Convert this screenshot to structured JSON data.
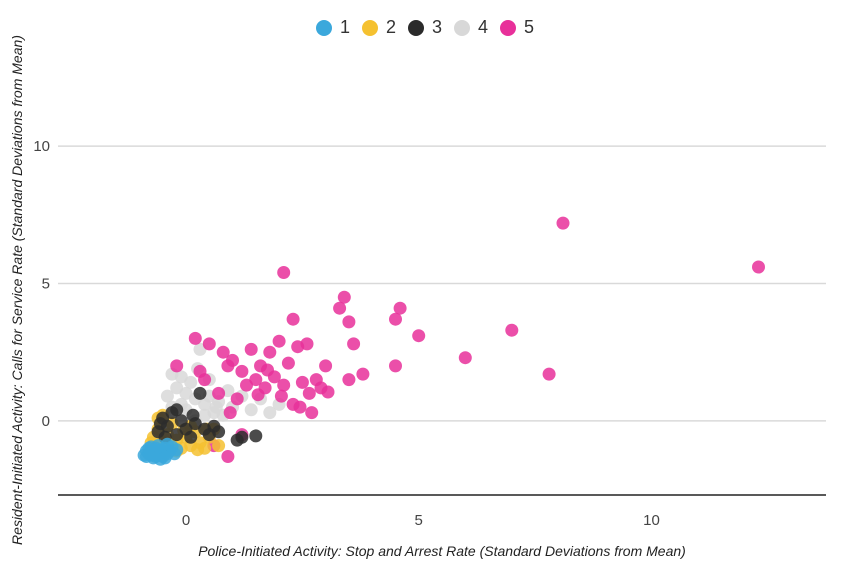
{
  "chart_data": {
    "type": "scatter",
    "title": "",
    "xlabel": "Police-Initiated Activity: Stop and Arrest Rate (Standard Deviations from Mean)",
    "ylabel": "Resident-Initiated Activity: Calls for Service Rate (Standard Deviations from Mean)",
    "xlim": [
      -2.75,
      13.75
    ],
    "ylim": [
      -2.7,
      13.5
    ],
    "xticks": [
      "0",
      "5",
      "10"
    ],
    "yticks": [
      "0",
      "5",
      "10"
    ],
    "grid": "horizontal",
    "legend_position": "top-center",
    "series": [
      {
        "name": "1",
        "color": "#3ba8dc",
        "points": [
          [
            -0.85,
            -1.3
          ],
          [
            -0.8,
            -1.2
          ],
          [
            -0.75,
            -1.25
          ],
          [
            -0.7,
            -1.1
          ],
          [
            -0.65,
            -1.3
          ],
          [
            -0.6,
            -1.2
          ],
          [
            -0.55,
            -1.05
          ],
          [
            -0.5,
            -1.15
          ],
          [
            -0.45,
            -1.0
          ],
          [
            -0.4,
            -1.2
          ],
          [
            -0.85,
            -1.1
          ],
          [
            -0.75,
            -0.95
          ],
          [
            -0.6,
            -0.9
          ],
          [
            -0.5,
            -1.3
          ],
          [
            -0.35,
            -1.1
          ],
          [
            -0.3,
            -0.95
          ],
          [
            -0.2,
            -1.05
          ],
          [
            -0.7,
            -1.35
          ],
          [
            -0.55,
            -1.4
          ],
          [
            -0.9,
            -1.25
          ],
          [
            -0.45,
            -1.35
          ],
          [
            -0.65,
            -1.0
          ],
          [
            -0.25,
            -1.2
          ],
          [
            -0.8,
            -1.0
          ],
          [
            -0.4,
            -0.85
          ]
        ]
      },
      {
        "name": "2",
        "color": "#f5c130",
        "points": [
          [
            -0.7,
            -0.6
          ],
          [
            -0.6,
            -0.3
          ],
          [
            -0.5,
            -0.8
          ],
          [
            -0.4,
            -0.5
          ],
          [
            -0.3,
            -0.9
          ],
          [
            -0.2,
            -0.7
          ],
          [
            -0.1,
            -1.0
          ],
          [
            0.0,
            -0.6
          ],
          [
            0.1,
            -0.9
          ],
          [
            0.2,
            -0.4
          ],
          [
            0.3,
            -0.8
          ],
          [
            0.4,
            -1.0
          ],
          [
            0.5,
            -0.6
          ],
          [
            0.6,
            -0.3
          ],
          [
            0.7,
            -0.9
          ],
          [
            -0.6,
            0.1
          ],
          [
            -0.5,
            0.2
          ],
          [
            -0.3,
            -0.1
          ],
          [
            -0.2,
            -1.1
          ],
          [
            0.1,
            -0.2
          ],
          [
            0.25,
            -1.05
          ],
          [
            -0.75,
            -0.8
          ],
          [
            0.45,
            -0.3
          ],
          [
            -0.05,
            -0.35
          ]
        ]
      },
      {
        "name": "3",
        "color": "#2b2b2b",
        "points": [
          [
            -0.6,
            -0.4
          ],
          [
            -0.5,
            0.1
          ],
          [
            -0.4,
            -0.2
          ],
          [
            -0.3,
            0.3
          ],
          [
            -0.2,
            -0.5
          ],
          [
            -0.1,
            0.0
          ],
          [
            0.0,
            -0.3
          ],
          [
            0.1,
            -0.6
          ],
          [
            0.2,
            -0.1
          ],
          [
            0.3,
            1.0
          ],
          [
            0.4,
            -0.3
          ],
          [
            0.5,
            -0.5
          ],
          [
            0.6,
            -0.2
          ],
          [
            0.7,
            -0.4
          ],
          [
            -0.45,
            -0.6
          ],
          [
            1.2,
            -0.6
          ],
          [
            1.5,
            -0.55
          ],
          [
            -0.2,
            0.4
          ],
          [
            0.15,
            0.2
          ],
          [
            1.1,
            -0.7
          ],
          [
            -0.55,
            -0.1
          ]
        ]
      },
      {
        "name": "4",
        "color": "#d8d8d8",
        "points": [
          [
            -0.3,
            1.7
          ],
          [
            -0.2,
            1.2
          ],
          [
            -0.1,
            1.6
          ],
          [
            0.0,
            1.0
          ],
          [
            0.1,
            1.4
          ],
          [
            0.2,
            0.8
          ],
          [
            0.3,
            2.6
          ],
          [
            0.4,
            0.6
          ],
          [
            0.5,
            0.9
          ],
          [
            0.6,
            0.3
          ],
          [
            0.7,
            0.7
          ],
          [
            0.8,
            0.2
          ],
          [
            0.9,
            1.1
          ],
          [
            1.0,
            0.5
          ],
          [
            1.2,
            0.9
          ],
          [
            1.4,
            0.4
          ],
          [
            1.6,
            0.8
          ],
          [
            1.8,
            0.3
          ],
          [
            2.0,
            0.6
          ],
          [
            -0.4,
            0.9
          ],
          [
            0.0,
            0.4
          ],
          [
            0.2,
            0.0
          ],
          [
            -0.3,
            0.5
          ],
          [
            0.5,
            1.5
          ],
          [
            0.25,
            1.9
          ],
          [
            -0.1,
            0.6
          ],
          [
            0.4,
            0.2
          ],
          [
            0.65,
            0.5
          ]
        ]
      },
      {
        "name": "5",
        "color": "#e8309a",
        "points": [
          [
            0.2,
            3.0
          ],
          [
            0.5,
            2.8
          ],
          [
            0.8,
            2.5
          ],
          [
            1.0,
            2.2
          ],
          [
            1.2,
            1.8
          ],
          [
            1.4,
            2.6
          ],
          [
            1.5,
            1.5
          ],
          [
            1.6,
            2.0
          ],
          [
            1.7,
            1.2
          ],
          [
            1.8,
            2.5
          ],
          [
            1.9,
            1.6
          ],
          [
            2.0,
            2.9
          ],
          [
            2.1,
            1.3
          ],
          [
            2.2,
            2.1
          ],
          [
            2.3,
            0.6
          ],
          [
            2.4,
            2.7
          ],
          [
            2.5,
            1.4
          ],
          [
            2.6,
            2.8
          ],
          [
            2.7,
            0.3
          ],
          [
            2.8,
            1.5
          ],
          [
            2.9,
            1.2
          ],
          [
            3.0,
            2.0
          ],
          [
            2.1,
            5.4
          ],
          [
            2.3,
            3.7
          ],
          [
            3.4,
            4.5
          ],
          [
            3.3,
            4.1
          ],
          [
            3.5,
            3.6
          ],
          [
            3.6,
            2.8
          ],
          [
            3.5,
            1.5
          ],
          [
            3.8,
            1.7
          ],
          [
            4.5,
            3.7
          ],
          [
            4.6,
            4.1
          ],
          [
            4.5,
            2.0
          ],
          [
            5.0,
            3.1
          ],
          [
            6.0,
            2.3
          ],
          [
            7.0,
            3.3
          ],
          [
            7.8,
            1.7
          ],
          [
            8.1,
            7.2
          ],
          [
            12.3,
            5.6
          ],
          [
            0.9,
            -1.3
          ],
          [
            1.2,
            -0.5
          ],
          [
            0.6,
            -0.9
          ],
          [
            0.4,
            1.5
          ],
          [
            0.7,
            1.0
          ],
          [
            1.1,
            0.8
          ],
          [
            1.3,
            1.3
          ],
          [
            0.9,
            2.0
          ],
          [
            0.3,
            1.8
          ],
          [
            -0.2,
            2.0
          ],
          [
            2.05,
            0.9
          ],
          [
            1.55,
            0.95
          ],
          [
            2.45,
            0.5
          ],
          [
            0.95,
            0.3
          ],
          [
            1.75,
            1.85
          ],
          [
            2.65,
            1.0
          ],
          [
            3.05,
            1.05
          ]
        ]
      }
    ]
  }
}
